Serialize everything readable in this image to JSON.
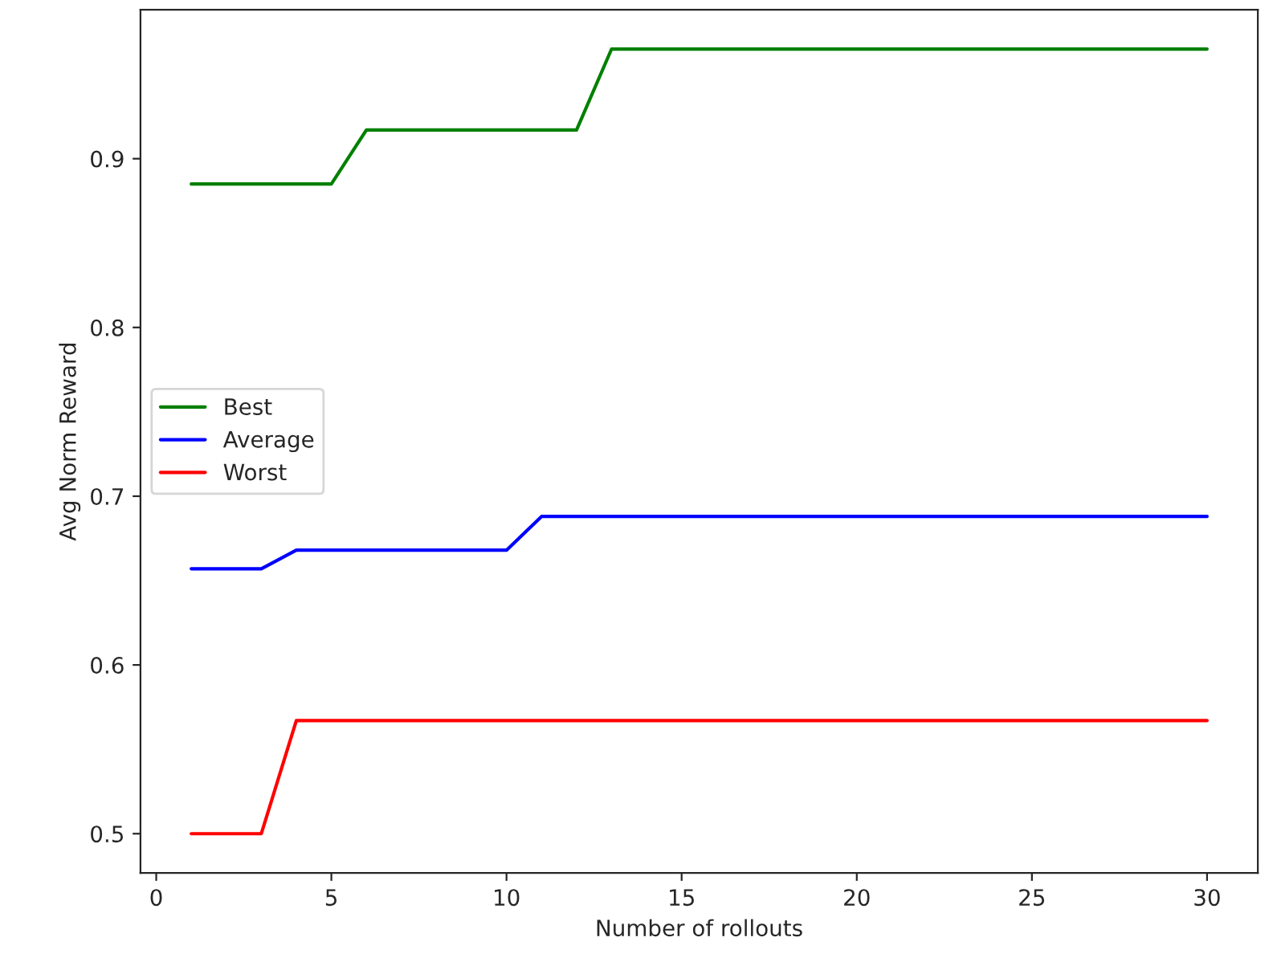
{
  "chart_data": {
    "type": "line",
    "xlabel": "Number of rollouts",
    "ylabel": "Avg Norm Reward",
    "x": [
      1,
      2,
      3,
      4,
      5,
      6,
      7,
      8,
      9,
      10,
      11,
      12,
      13,
      14,
      15,
      16,
      17,
      18,
      19,
      20,
      21,
      22,
      23,
      24,
      25,
      26,
      27,
      28,
      29,
      30
    ],
    "series": [
      {
        "name": "Best",
        "color": "#008000",
        "values": [
          0.885,
          0.885,
          0.885,
          0.885,
          0.885,
          0.917,
          0.917,
          0.917,
          0.917,
          0.917,
          0.917,
          0.917,
          0.965,
          0.965,
          0.965,
          0.965,
          0.965,
          0.965,
          0.965,
          0.965,
          0.965,
          0.965,
          0.965,
          0.965,
          0.965,
          0.965,
          0.965,
          0.965,
          0.965,
          0.965
        ]
      },
      {
        "name": "Average",
        "color": "#0000ff",
        "values": [
          0.657,
          0.657,
          0.657,
          0.668,
          0.668,
          0.668,
          0.668,
          0.668,
          0.668,
          0.668,
          0.688,
          0.688,
          0.688,
          0.688,
          0.688,
          0.688,
          0.688,
          0.688,
          0.688,
          0.688,
          0.688,
          0.688,
          0.688,
          0.688,
          0.688,
          0.688,
          0.688,
          0.688,
          0.688,
          0.688
        ]
      },
      {
        "name": "Worst",
        "color": "#ff0000",
        "values": [
          0.5,
          0.5,
          0.5,
          0.567,
          0.567,
          0.567,
          0.567,
          0.567,
          0.567,
          0.567,
          0.567,
          0.567,
          0.567,
          0.567,
          0.567,
          0.567,
          0.567,
          0.567,
          0.567,
          0.567,
          0.567,
          0.567,
          0.567,
          0.567,
          0.567,
          0.567,
          0.567,
          0.567,
          0.567,
          0.567
        ]
      }
    ],
    "xlim": [
      -0.45,
      31.45
    ],
    "xticks": [
      0,
      5,
      10,
      15,
      20,
      25,
      30
    ],
    "ylim": [
      0.4767,
      0.9883
    ],
    "yticks": [
      0.5,
      0.6,
      0.7,
      0.8,
      0.9
    ],
    "legend": "center left",
    "grid": false
  }
}
